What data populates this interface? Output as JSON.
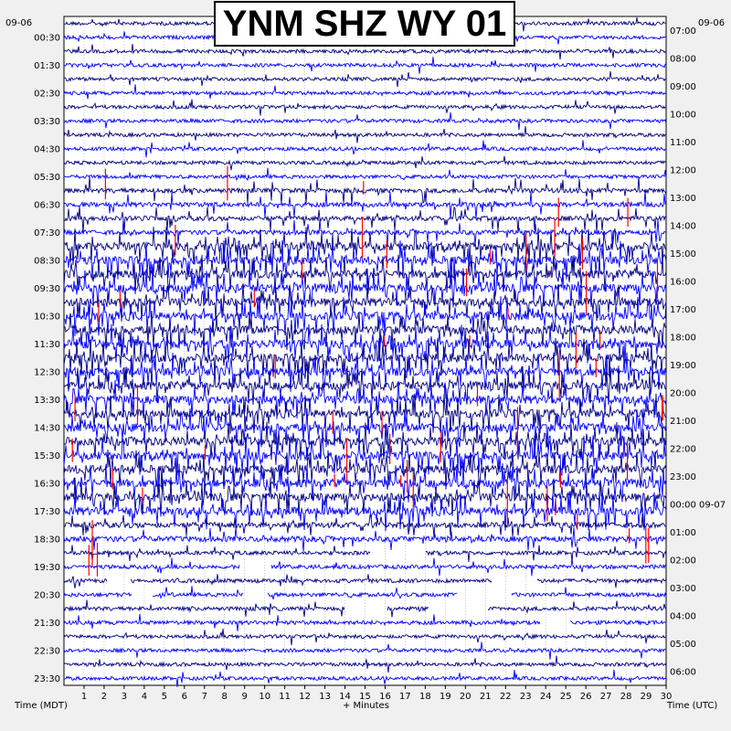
{
  "chart_data": {
    "type": "line",
    "title": "YNM SHZ WY 01",
    "date_left": "09-06",
    "date_right": "09-06",
    "xlabel": "+ Minutes",
    "ylabel_left": "Time (MDT)",
    "ylabel_right": "Time (UTC)",
    "xlim": [
      0,
      30
    ],
    "x_ticks": [
      "1",
      "2",
      "3",
      "4",
      "5",
      "6",
      "7",
      "8",
      "9",
      "10",
      "11",
      "12",
      "13",
      "14",
      "15",
      "16",
      "17",
      "18",
      "19",
      "20",
      "21",
      "22",
      "23",
      "24",
      "25",
      "26",
      "27",
      "28",
      "29",
      "30"
    ],
    "rows_per_hour": 2,
    "row_minutes": 30,
    "left_tick_labels": [
      "00:30",
      "01:30",
      "02:30",
      "03:30",
      "04:30",
      "05:30",
      "06:30",
      "07:30",
      "08:30",
      "09:30",
      "10:30",
      "11:30",
      "12:30",
      "13:30",
      "14:30",
      "15:30",
      "16:30",
      "17:30",
      "18:30",
      "19:30",
      "20:30",
      "21:30",
      "22:30",
      "23:30"
    ],
    "right_tick_labels": [
      "07:00",
      "08:00",
      "09:00",
      "10:00",
      "11:00",
      "12:00",
      "13:00",
      "14:00",
      "15:00",
      "16:00",
      "17:00",
      "18:00",
      "19:00",
      "20:00",
      "21:00",
      "22:00",
      "23:00",
      "00:00 09-07",
      "01:00",
      "02:00",
      "03:00",
      "04:00",
      "05:00",
      "06:00"
    ],
    "trace_colors": [
      "#000080",
      "#0000ff"
    ],
    "event_color": "#ff0000",
    "grid": true,
    "grid_style": "dotted",
    "series": [
      {
        "row_range": [
          0,
          12
        ],
        "activity": "low"
      },
      {
        "row_range": [
          12,
          16
        ],
        "activity": "rising"
      },
      {
        "row_range": [
          16,
          36
        ],
        "activity": "high"
      },
      {
        "row_range": [
          36,
          38
        ],
        "activity": "moderate"
      },
      {
        "row_range": [
          38,
          44
        ],
        "activity": "gaps"
      },
      {
        "row_range": [
          44,
          48
        ],
        "activity": "low"
      }
    ]
  }
}
